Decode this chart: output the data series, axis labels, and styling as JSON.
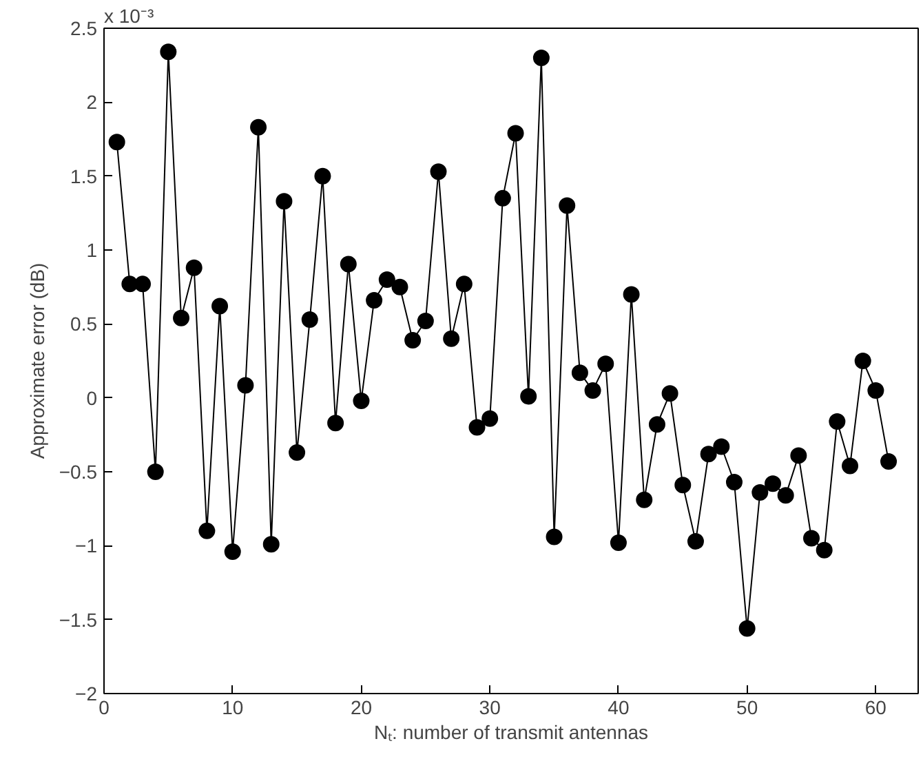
{
  "chart_data": {
    "type": "line",
    "xlabel": "Nₜ: number of transmit antennas",
    "ylabel": "Approximate error (dB)",
    "annotations": [
      "x 10⁻³"
    ],
    "x": [
      1,
      2,
      3,
      4,
      5,
      6,
      7,
      8,
      9,
      10,
      11,
      12,
      13,
      14,
      15,
      16,
      17,
      18,
      19,
      20,
      21,
      22,
      23,
      24,
      25,
      26,
      27,
      28,
      29,
      30,
      31,
      32,
      33,
      34,
      35,
      36,
      37,
      38,
      39,
      40,
      41,
      42,
      43,
      44,
      45,
      46,
      47,
      48,
      49,
      50,
      51,
      52,
      53,
      54,
      55,
      56,
      57,
      58,
      59,
      60,
      61
    ],
    "series": [
      {
        "color": "#000000",
        "values": [
          1.73,
          0.77,
          0.77,
          -0.5,
          2.34,
          0.54,
          0.88,
          -0.9,
          0.62,
          -1.04,
          0.085,
          1.83,
          -0.99,
          1.33,
          -0.37,
          0.53,
          1.5,
          -0.17,
          0.905,
          -0.02,
          0.66,
          0.8,
          0.75,
          0.39,
          0.52,
          1.53,
          0.4,
          0.77,
          -0.2,
          -0.14,
          1.35,
          1.79,
          0.01,
          2.3,
          -0.94,
          1.3,
          0.17,
          0.05,
          0.23,
          -0.98,
          0.7,
          -0.69,
          -0.18,
          0.03,
          -0.59,
          -0.97,
          -0.38,
          -0.33,
          -0.57,
          -1.56,
          -0.64,
          -0.58,
          -0.66,
          -0.39,
          -0.95,
          -1.03,
          -0.16,
          -0.46,
          0.25,
          0.05,
          -0.43
        ]
      }
    ],
    "xlim": [
      0,
      63.3
    ],
    "ylim": [
      -2,
      2.5
    ],
    "xticks": [
      0,
      10,
      20,
      30,
      40,
      50,
      60
    ],
    "yticks": [
      -2,
      -1.5,
      -1,
      -0.5,
      0,
      0.5,
      1,
      1.5,
      2,
      2.5
    ],
    "marker": "circle",
    "line_style": "solid",
    "grid": false
  }
}
